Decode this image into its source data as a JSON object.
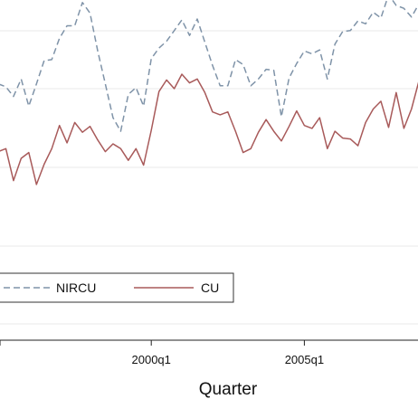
{
  "chart_data": {
    "type": "line",
    "title": "",
    "xlabel": "Quarter",
    "ylabel": "",
    "x_start_quarter": "1995q1",
    "x": [
      "1995q1",
      "1995q2",
      "1995q3",
      "1995q4",
      "1996q1",
      "1996q2",
      "1996q3",
      "1996q4",
      "1997q1",
      "1997q2",
      "1997q3",
      "1997q4",
      "1998q1",
      "1998q2",
      "1998q3",
      "1998q4",
      "1999q1",
      "1999q2",
      "1999q3",
      "1999q4",
      "2000q1",
      "2000q2",
      "2000q3",
      "2000q4",
      "2001q1",
      "2001q2",
      "2001q3",
      "2001q4",
      "2002q1",
      "2002q2",
      "2002q3",
      "2002q4",
      "2003q1",
      "2003q2",
      "2003q3",
      "2003q4",
      "2004q1",
      "2004q2",
      "2004q3",
      "2004q4",
      "2005q1",
      "2005q2",
      "2005q3",
      "2005q4",
      "2006q1",
      "2006q2",
      "2006q3",
      "2006q4",
      "2007q1",
      "2007q2",
      "2007q3",
      "2007q4",
      "2008q1",
      "2008q2",
      "2008q3",
      "2008q4",
      "2009q1"
    ],
    "xticks": [
      "2000q1",
      "2005q1"
    ],
    "grid": true,
    "legend_position": "bottom-left",
    "series": [
      {
        "name": "NIRCU",
        "style": "dashed",
        "color": "#7f93a8",
        "values": [
          80.5,
          80.2,
          79.2,
          81.0,
          78.2,
          80.5,
          82.9,
          83.0,
          85.2,
          86.5,
          86.5,
          88.9,
          87.8,
          83.9,
          80.5,
          77.0,
          75.6,
          79.4,
          80.1,
          78.2,
          83.1,
          84.2,
          84.9,
          86.0,
          87.1,
          85.5,
          87.2,
          84.8,
          82.4,
          80.3,
          80.3,
          83.0,
          82.5,
          80.3,
          81.0,
          82.0,
          81.9,
          77.1,
          81.1,
          82.6,
          83.9,
          83.6,
          84.0,
          81.0,
          84.6,
          85.9,
          86.0,
          87.0,
          86.7,
          87.9,
          87.3,
          89.7,
          88.6,
          88.3,
          87.4,
          88.8,
          86.0
        ]
      },
      {
        "name": "CU",
        "style": "solid",
        "color": "#a85a5a",
        "values": [
          73.5,
          73.8,
          70.5,
          72.8,
          73.4,
          70.1,
          72.2,
          73.8,
          76.2,
          74.4,
          76.5,
          75.5,
          76.1,
          74.7,
          73.5,
          74.3,
          73.8,
          72.6,
          73.8,
          72.1,
          75.7,
          79.7,
          80.9,
          80.0,
          81.5,
          80.6,
          81.0,
          79.6,
          77.6,
          77.3,
          77.6,
          75.6,
          73.4,
          73.8,
          75.5,
          76.8,
          75.6,
          74.6,
          76.1,
          77.7,
          76.2,
          75.9,
          77.0,
          73.8,
          75.6,
          74.9,
          74.8,
          74.1,
          76.5,
          77.9,
          78.7,
          76.0,
          79.6,
          75.9,
          77.9,
          80.9,
          74.1
        ]
      }
    ]
  }
}
